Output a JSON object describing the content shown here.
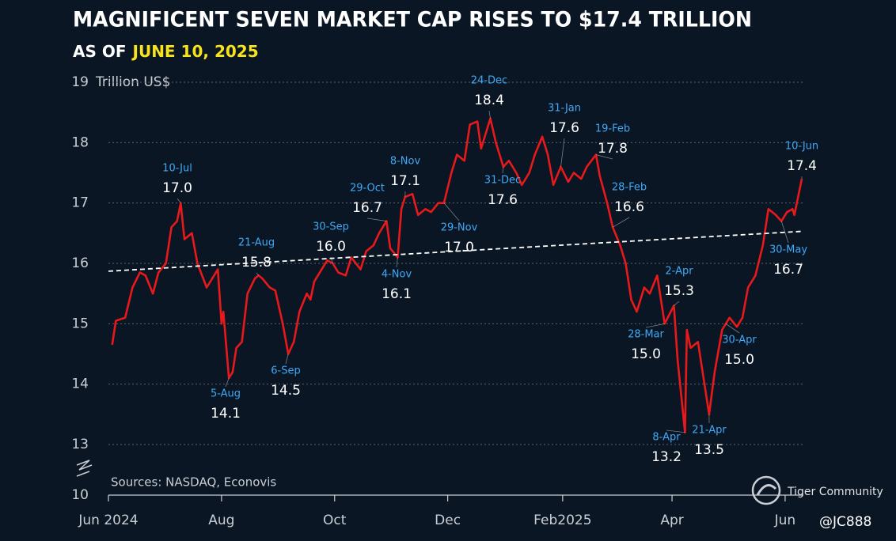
{
  "chart_data": {
    "type": "line",
    "title": "MAGNIFICENT SEVEN MARKET CAP RISES  TO $17.4 TRILLION",
    "subtitle": [
      "AS OF",
      "JUNE 10, 2025"
    ],
    "y_label": "Trillion US$",
    "source": "Sources: NASDAQ, Econovis",
    "watermarks": [
      "Tiger Community",
      "@JC888"
    ],
    "xlim": [
      "2024-06-01",
      "2025-06-10"
    ],
    "xticks": [
      {
        "value": "2024-06-01",
        "label": "Jun 2024"
      },
      {
        "value": "2024-08-01",
        "label": "Aug"
      },
      {
        "value": "2024-10-01",
        "label": "Oct"
      },
      {
        "value": "2024-12-01",
        "label": "Dec"
      },
      {
        "value": "2025-02-01",
        "label": "Feb2025"
      },
      {
        "value": "2025-04-01",
        "label": "Apr"
      },
      {
        "value": "2025-06-01",
        "label": "Jun"
      }
    ],
    "ylim": [
      10,
      19
    ],
    "yticks": [
      10,
      13,
      14,
      15,
      16,
      17,
      18,
      19
    ],
    "y_axis_break": true,
    "grid": true,
    "series": [
      {
        "color": "#e8191b",
        "style": "solid",
        "x": [
          "2024-06-03",
          "2024-06-05",
          "2024-06-10",
          "2024-06-14",
          "2024-06-18",
          "2024-06-21",
          "2024-06-25",
          "2024-06-28",
          "2024-07-02",
          "2024-07-05",
          "2024-07-08",
          "2024-07-10",
          "2024-07-12",
          "2024-07-16",
          "2024-07-19",
          "2024-07-24",
          "2024-07-26",
          "2024-07-30",
          "2024-08-01",
          "2024-08-02",
          "2024-08-05",
          "2024-08-07",
          "2024-08-09",
          "2024-08-12",
          "2024-08-15",
          "2024-08-19",
          "2024-08-21",
          "2024-08-23",
          "2024-08-27",
          "2024-08-30",
          "2024-09-03",
          "2024-09-06",
          "2024-09-09",
          "2024-09-12",
          "2024-09-16",
          "2024-09-18",
          "2024-09-20",
          "2024-09-24",
          "2024-09-27",
          "2024-09-30",
          "2024-10-03",
          "2024-10-07",
          "2024-10-10",
          "2024-10-15",
          "2024-10-18",
          "2024-10-22",
          "2024-10-25",
          "2024-10-29",
          "2024-10-31",
          "2024-11-04",
          "2024-11-06",
          "2024-11-08",
          "2024-11-12",
          "2024-11-15",
          "2024-11-19",
          "2024-11-22",
          "2024-11-26",
          "2024-11-29",
          "2024-12-03",
          "2024-12-06",
          "2024-12-10",
          "2024-12-13",
          "2024-12-17",
          "2024-12-19",
          "2024-12-24",
          "2024-12-27",
          "2024-12-31",
          "2025-01-03",
          "2025-01-07",
          "2025-01-10",
          "2025-01-14",
          "2025-01-17",
          "2025-01-21",
          "2025-01-24",
          "2025-01-27",
          "2025-01-31",
          "2025-02-04",
          "2025-02-07",
          "2025-02-11",
          "2025-02-14",
          "2025-02-19",
          "2025-02-21",
          "2025-02-25",
          "2025-02-28",
          "2025-03-04",
          "2025-03-07",
          "2025-03-10",
          "2025-03-13",
          "2025-03-17",
          "2025-03-20",
          "2025-03-24",
          "2025-03-28",
          "2025-04-02",
          "2025-04-04",
          "2025-04-07",
          "2025-04-08",
          "2025-04-09",
          "2025-04-11",
          "2025-04-15",
          "2025-04-17",
          "2025-04-21",
          "2025-04-24",
          "2025-04-28",
          "2025-04-30",
          "2025-05-02",
          "2025-05-06",
          "2025-05-09",
          "2025-05-12",
          "2025-05-14",
          "2025-05-16",
          "2025-05-20",
          "2025-05-23",
          "2025-05-27",
          "2025-05-30",
          "2025-06-02",
          "2025-06-05",
          "2025-06-06",
          "2025-06-10"
        ],
        "values": [
          14.65,
          15.05,
          15.1,
          15.6,
          15.85,
          15.8,
          15.5,
          15.85,
          16.0,
          16.6,
          16.7,
          17.0,
          16.4,
          16.5,
          16.0,
          15.6,
          15.7,
          15.9,
          15.0,
          15.2,
          14.1,
          14.2,
          14.6,
          14.7,
          15.5,
          15.75,
          15.8,
          15.75,
          15.6,
          15.55,
          15.0,
          14.5,
          14.7,
          15.2,
          15.5,
          15.4,
          15.7,
          15.9,
          16.05,
          16.0,
          15.85,
          15.8,
          16.1,
          15.9,
          16.2,
          16.3,
          16.5,
          16.7,
          16.25,
          16.1,
          16.9,
          17.1,
          17.15,
          16.8,
          16.9,
          16.85,
          17.0,
          17.0,
          17.5,
          17.8,
          17.7,
          18.3,
          18.35,
          17.9,
          18.4,
          18.0,
          17.6,
          17.7,
          17.5,
          17.3,
          17.5,
          17.8,
          18.1,
          17.8,
          17.3,
          17.6,
          17.35,
          17.5,
          17.4,
          17.6,
          17.8,
          17.45,
          17.0,
          16.6,
          16.3,
          16.0,
          15.4,
          15.2,
          15.6,
          15.5,
          15.8,
          15.0,
          15.3,
          14.4,
          13.5,
          13.2,
          14.9,
          14.6,
          14.7,
          14.3,
          13.5,
          14.2,
          14.9,
          15.0,
          15.1,
          14.95,
          15.1,
          15.6,
          15.7,
          15.8,
          16.3,
          16.9,
          16.8,
          16.7,
          16.85,
          16.9,
          16.8,
          17.4
        ]
      },
      {
        "color": "#ffffff",
        "style": "dashed",
        "x": [
          "2024-06-01",
          "2025-06-10"
        ],
        "values": [
          15.87,
          16.53
        ]
      }
    ],
    "annotations": [
      {
        "x": "2024-07-10",
        "date": "10-Jul",
        "value": 17.0,
        "value_label": "17.0"
      },
      {
        "x": "2024-08-05",
        "date": "5-Aug",
        "value": 14.1,
        "value_label": "14.1"
      },
      {
        "x": "2024-08-21",
        "date": "21-Aug",
        "value": 15.8,
        "value_label": "15.8"
      },
      {
        "x": "2024-09-06",
        "date": "6-Sep",
        "value": 14.5,
        "value_label": "14.5"
      },
      {
        "x": "2024-09-30",
        "date": "30-Sep",
        "value": 16.0,
        "value_label": "16.0"
      },
      {
        "x": "2024-10-29",
        "date": "29-Oct",
        "value": 16.7,
        "value_label": "16.7"
      },
      {
        "x": "2024-11-04",
        "date": "4-Nov",
        "value": 16.1,
        "value_label": "16.1"
      },
      {
        "x": "2024-11-08",
        "date": "8-Nov",
        "value": 17.1,
        "value_label": "17.1"
      },
      {
        "x": "2024-11-29",
        "date": "29-Nov",
        "value": 17.0,
        "value_label": "17.0"
      },
      {
        "x": "2024-12-24",
        "date": "24-Dec",
        "value": 18.4,
        "value_label": "18.4"
      },
      {
        "x": "2024-12-31",
        "date": "31-Dec",
        "value": 17.6,
        "value_label": "17.6"
      },
      {
        "x": "2025-01-31",
        "date": "31-Jan",
        "value": 17.6,
        "value_label": "17.6"
      },
      {
        "x": "2025-02-19",
        "date": "19-Feb",
        "value": 17.8,
        "value_label": "17.8"
      },
      {
        "x": "2025-02-28",
        "date": "28-Feb",
        "value": 16.6,
        "value_label": "16.6"
      },
      {
        "x": "2025-03-28",
        "date": "28-Mar",
        "value": 15.0,
        "value_label": "15.0"
      },
      {
        "x": "2025-04-02",
        "date": "2-Apr",
        "value": 15.3,
        "value_label": "15.3"
      },
      {
        "x": "2025-04-08",
        "date": "8-Apr",
        "value": 13.2,
        "value_label": "13.2"
      },
      {
        "x": "2025-04-21",
        "date": "21-Apr",
        "value": 13.5,
        "value_label": "13.5"
      },
      {
        "x": "2025-04-30",
        "date": "30-Apr",
        "value": 15.0,
        "value_label": "15.0"
      },
      {
        "x": "2025-05-30",
        "date": "30-May",
        "value": 16.7,
        "value_label": "16.7"
      },
      {
        "x": "2025-06-10",
        "date": "10-Jun",
        "value": 17.4,
        "value_label": "17.4"
      }
    ]
  }
}
